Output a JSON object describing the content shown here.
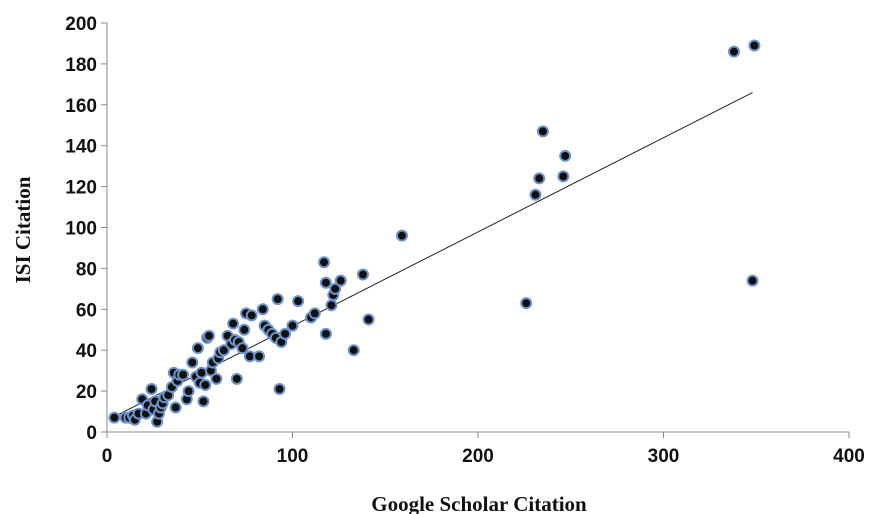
{
  "chart_data": {
    "type": "scatter",
    "title": "",
    "xlabel": "Google Scholar Citation",
    "ylabel": "ISI Citation",
    "xlim": [
      0,
      400
    ],
    "ylim": [
      0,
      200
    ],
    "x_ticks": [
      "0",
      "100",
      "200",
      "300",
      "400"
    ],
    "y_ticks": [
      "0",
      "20",
      "40",
      "60",
      "80",
      "100",
      "120",
      "140",
      "160",
      "180",
      "200"
    ],
    "grid": false,
    "legend": "none",
    "colors": {
      "marker_fill": "#111111",
      "marker_edge": "#6f93c9",
      "trendline": "#222222",
      "axis": "#8a8a8a"
    },
    "trendline": {
      "type": "linear",
      "x": [
        5,
        348
      ],
      "y": [
        8,
        166
      ]
    },
    "points": [
      [
        4,
        7
      ],
      [
        10,
        7
      ],
      [
        12,
        7
      ],
      [
        14,
        8
      ],
      [
        15,
        6
      ],
      [
        17,
        9
      ],
      [
        19,
        16
      ],
      [
        21,
        9
      ],
      [
        22,
        13
      ],
      [
        24,
        21
      ],
      [
        25,
        11
      ],
      [
        26,
        15
      ],
      [
        27,
        5
      ],
      [
        28,
        9
      ],
      [
        29,
        12
      ],
      [
        30,
        14
      ],
      [
        31,
        17
      ],
      [
        33,
        18
      ],
      [
        35,
        22
      ],
      [
        36,
        29
      ],
      [
        37,
        12
      ],
      [
        38,
        25
      ],
      [
        39,
        28
      ],
      [
        41,
        28
      ],
      [
        43,
        16
      ],
      [
        44,
        20
      ],
      [
        46,
        34
      ],
      [
        48,
        27
      ],
      [
        49,
        41
      ],
      [
        50,
        24
      ],
      [
        51,
        29
      ],
      [
        52,
        15
      ],
      [
        53,
        23
      ],
      [
        54,
        46
      ],
      [
        55,
        47
      ],
      [
        56,
        30
      ],
      [
        57,
        34
      ],
      [
        59,
        26
      ],
      [
        60,
        36
      ],
      [
        61,
        39
      ],
      [
        63,
        40
      ],
      [
        65,
        47
      ],
      [
        67,
        43
      ],
      [
        68,
        53
      ],
      [
        69,
        45
      ],
      [
        70,
        26
      ],
      [
        71,
        44
      ],
      [
        73,
        41
      ],
      [
        74,
        50
      ],
      [
        75,
        58
      ],
      [
        77,
        37
      ],
      [
        78,
        57
      ],
      [
        82,
        37
      ],
      [
        84,
        60
      ],
      [
        85,
        52
      ],
      [
        87,
        50
      ],
      [
        89,
        48
      ],
      [
        91,
        46
      ],
      [
        92,
        65
      ],
      [
        93,
        21
      ],
      [
        94,
        44
      ],
      [
        96,
        48
      ],
      [
        100,
        52
      ],
      [
        103,
        64
      ],
      [
        110,
        56
      ],
      [
        112,
        58
      ],
      [
        117,
        83
      ],
      [
        118,
        48
      ],
      [
        118,
        73
      ],
      [
        121,
        62
      ],
      [
        122,
        67
      ],
      [
        123,
        70
      ],
      [
        126,
        74
      ],
      [
        133,
        40
      ],
      [
        138,
        77
      ],
      [
        141,
        55
      ],
      [
        159,
        96
      ],
      [
        226,
        63
      ],
      [
        231,
        116
      ],
      [
        233,
        124
      ],
      [
        235,
        147
      ],
      [
        246,
        125
      ],
      [
        247,
        135
      ],
      [
        338,
        186
      ],
      [
        348,
        74
      ],
      [
        349,
        189
      ]
    ]
  }
}
